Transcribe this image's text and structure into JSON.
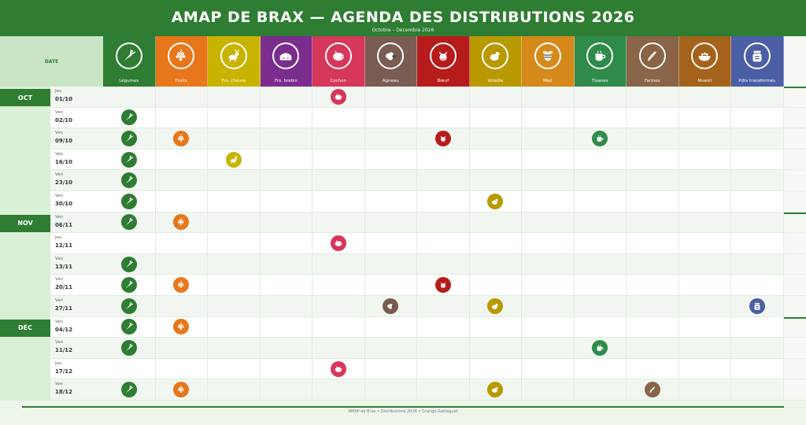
{
  "header": {
    "title": "AMAP DE BRAX  —  AGENDA DES DISTRIBUTIONS 2026",
    "subtitle": "Octobre – Décembre 2026"
  },
  "corner_label": "DATE",
  "columns": [
    {
      "key": "legumes",
      "label": "Légumes",
      "color": "#2e7d32",
      "icon": "carrot-icon"
    },
    {
      "key": "fruits",
      "label": "Fruits",
      "color": "#e8761a",
      "icon": "grapes-icon"
    },
    {
      "key": "chevre",
      "label": "Fro. chèvre",
      "color": "#c8b400",
      "icon": "goat-icon"
    },
    {
      "key": "brebis",
      "label": "Fro. brebis",
      "color": "#7b2d8e",
      "icon": "cheese-icon"
    },
    {
      "key": "cochon",
      "label": "Cochon",
      "color": "#d6375a",
      "icon": "pig-icon"
    },
    {
      "key": "agneau",
      "label": "Agneau",
      "color": "#7a5c52",
      "icon": "sheep-icon"
    },
    {
      "key": "boeuf",
      "label": "Bœuf",
      "color": "#b71c1c",
      "icon": "cow-icon"
    },
    {
      "key": "volaille",
      "label": "Volaille",
      "color": "#b89a00",
      "icon": "chicken-icon"
    },
    {
      "key": "miel",
      "label": "Miel",
      "color": "#d4891a",
      "icon": "bee-icon"
    },
    {
      "key": "tisanes",
      "label": "Tisanes",
      "color": "#2e8b4a",
      "icon": "tea-cup-icon"
    },
    {
      "key": "farines",
      "label": "Farines",
      "color": "#8a6446",
      "icon": "wheat-icon"
    },
    {
      "key": "muesli",
      "label": "Muesli",
      "color": "#a5621a",
      "icon": "bowl-icon"
    },
    {
      "key": "transformes",
      "label": "Pdts transformés",
      "color": "#4a5fa5",
      "icon": "jar-icon"
    }
  ],
  "rows": [
    {
      "month": "OCT",
      "dow": "Jeu",
      "date": "01/10",
      "items": [
        "cochon"
      ]
    },
    {
      "month": "",
      "dow": "Ven",
      "date": "02/10",
      "items": [
        "legumes"
      ]
    },
    {
      "month": "",
      "dow": "Ven",
      "date": "09/10",
      "items": [
        "legumes",
        "fruits",
        "boeuf",
        "tisanes"
      ]
    },
    {
      "month": "",
      "dow": "Ven",
      "date": "16/10",
      "items": [
        "legumes",
        "chevre"
      ]
    },
    {
      "month": "",
      "dow": "Ven",
      "date": "23/10",
      "items": [
        "legumes"
      ]
    },
    {
      "month": "",
      "dow": "Ven",
      "date": "30/10",
      "items": [
        "legumes",
        "volaille"
      ]
    },
    {
      "month": "NOV",
      "dow": "Ven",
      "date": "06/11",
      "items": [
        "legumes",
        "fruits"
      ]
    },
    {
      "month": "",
      "dow": "Jeu",
      "date": "12/11",
      "items": [
        "cochon"
      ]
    },
    {
      "month": "",
      "dow": "Ven",
      "date": "13/11",
      "items": [
        "legumes"
      ]
    },
    {
      "month": "",
      "dow": "Ven",
      "date": "20/11",
      "items": [
        "legumes",
        "fruits",
        "boeuf"
      ]
    },
    {
      "month": "",
      "dow": "Ven",
      "date": "27/11",
      "items": [
        "legumes",
        "agneau",
        "volaille",
        "transformes"
      ]
    },
    {
      "month": "DÉC",
      "dow": "Ven",
      "date": "04/12",
      "items": [
        "legumes",
        "fruits"
      ]
    },
    {
      "month": "",
      "dow": "Ven",
      "date": "11/12",
      "items": [
        "legumes",
        "tisanes"
      ]
    },
    {
      "month": "",
      "dow": "Jeu",
      "date": "17/12",
      "items": [
        "cochon"
      ]
    },
    {
      "month": "",
      "dow": "Ven",
      "date": "18/12",
      "items": [
        "legumes",
        "fruits",
        "volaille",
        "farines"
      ]
    }
  ],
  "footer": "AMAP de Brax  •  Distributions 2026  •  Grange Gaillaguet"
}
